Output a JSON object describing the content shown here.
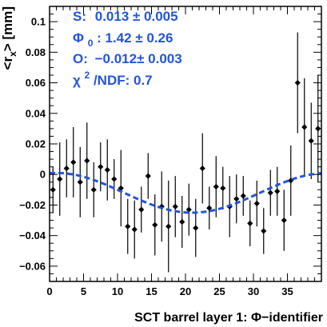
{
  "chart_data": {
    "type": "scatter",
    "xlabel": "SCT barrel layer 1: Φ−identifier",
    "ylabel": "<r_x> [mm]",
    "xlim": [
      0,
      40
    ],
    "ylim": [
      -0.07,
      0.11
    ],
    "x_ticks": [
      "0",
      "5",
      "10",
      "15",
      "20",
      "25",
      "30",
      "35"
    ],
    "y_ticks": [
      "−0.06",
      "−0.04",
      "−0.02",
      "0",
      "0.02",
      "0.04",
      "0.06",
      "0.08",
      "0.1"
    ],
    "fit_color": "#2255dd",
    "marker_color": "#000000",
    "fit_params": {
      "S_label": "S:",
      "S_value": "0.013 ± 0.005",
      "phi_label": "Φ",
      "phi_sub": "0",
      "phi_value": ": 1.42 ± 0.26",
      "O_label": "O:",
      "O_value": "−0.012± 0.003",
      "chi_label": "χ",
      "chi_sup": "2",
      "chi_value": "/NDF: 0.7"
    },
    "fit_curve": {
      "S": 0.013,
      "phi0": 1.42,
      "O": -0.012,
      "period": 40
    },
    "points": [
      {
        "x": 0.5,
        "y": -0.01,
        "err": 0.015
      },
      {
        "x": 1.5,
        "y": -0.003,
        "err": 0.024
      },
      {
        "x": 2.5,
        "y": 0.004,
        "err": 0.019
      },
      {
        "x": 3.5,
        "y": 0.008,
        "err": 0.023
      },
      {
        "x": 4.5,
        "y": -0.005,
        "err": 0.023
      },
      {
        "x": 5.5,
        "y": 0.009,
        "err": 0.025
      },
      {
        "x": 6.5,
        "y": -0.01,
        "err": 0.018
      },
      {
        "x": 7.5,
        "y": 0.005,
        "err": 0.016
      },
      {
        "x": 8.5,
        "y": 0.003,
        "err": 0.02
      },
      {
        "x": 9.5,
        "y": -0.003,
        "err": 0.013
      },
      {
        "x": 10.5,
        "y": -0.009,
        "err": 0.025
      },
      {
        "x": 11.5,
        "y": -0.034,
        "err": 0.018
      },
      {
        "x": 12.5,
        "y": -0.036,
        "err": 0.019
      },
      {
        "x": 13.5,
        "y": -0.023,
        "err": 0.015
      },
      {
        "x": 14.5,
        "y": -0.001,
        "err": 0.015
      },
      {
        "x": 15.5,
        "y": -0.033,
        "err": 0.02
      },
      {
        "x": 16.5,
        "y": -0.021,
        "err": 0.023
      },
      {
        "x": 17.5,
        "y": -0.034,
        "err": 0.03
      },
      {
        "x": 18.5,
        "y": -0.021,
        "err": 0.02
      },
      {
        "x": 19.5,
        "y": -0.031,
        "err": 0.017
      },
      {
        "x": 20.5,
        "y": -0.023,
        "err": 0.017
      },
      {
        "x": 21.5,
        "y": -0.035,
        "err": 0.019
      },
      {
        "x": 22.5,
        "y": 0.004,
        "err": 0.023
      },
      {
        "x": 23.5,
        "y": -0.022,
        "err": 0.014
      },
      {
        "x": 24.5,
        "y": -0.008,
        "err": 0.02
      },
      {
        "x": 25.5,
        "y": -0.009,
        "err": 0.014
      },
      {
        "x": 26.5,
        "y": -0.021,
        "err": 0.02
      },
      {
        "x": 27.5,
        "y": -0.016,
        "err": 0.016
      },
      {
        "x": 28.5,
        "y": -0.014,
        "err": 0.013
      },
      {
        "x": 29.5,
        "y": -0.032,
        "err": 0.015
      },
      {
        "x": 30.5,
        "y": -0.019,
        "err": 0.015
      },
      {
        "x": 31.5,
        "y": -0.037,
        "err": 0.015
      },
      {
        "x": 32.5,
        "y": -0.012,
        "err": 0.015
      },
      {
        "x": 33.5,
        "y": -0.011,
        "err": 0.016
      },
      {
        "x": 34.5,
        "y": -0.03,
        "err": 0.02
      },
      {
        "x": 35.5,
        "y": -0.004,
        "err": 0.023
      },
      {
        "x": 36.5,
        "y": 0.06,
        "err": 0.033
      },
      {
        "x": 37.5,
        "y": 0.031,
        "err": 0.032
      },
      {
        "x": 38.5,
        "y": 0.022,
        "err": 0.025
      },
      {
        "x": 39.5,
        "y": 0.03,
        "err": 0.035
      }
    ]
  }
}
